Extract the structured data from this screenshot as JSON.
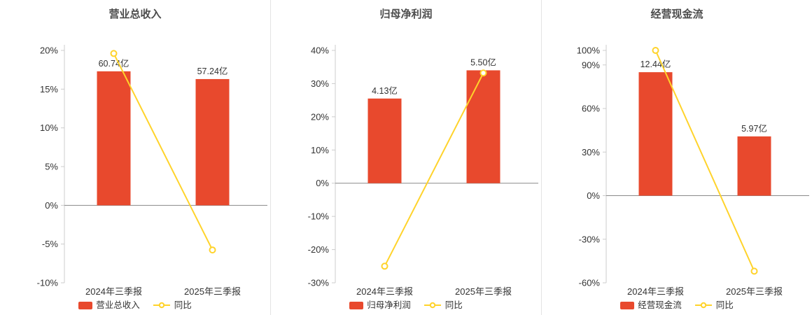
{
  "style": {
    "bar_color": "#e8492d",
    "line_color": "#ffd32b",
    "axis_color": "#cccccc",
    "zero_line_color": "#8a8a8a",
    "text_color": "#333333",
    "title_color": "#4c4c4c",
    "divider_color": "#e4e4e4",
    "background": "#ffffff"
  },
  "chart_data": [
    {
      "type": "bar+line",
      "title": "营业总收入",
      "categories": [
        "2024年三季报",
        "2025年三季报"
      ],
      "bar_series": {
        "name": "营业总收入",
        "unit": "亿",
        "values": [
          60.74,
          57.24
        ],
        "labels": [
          "60.74亿",
          "57.24亿"
        ],
        "display_pct": [
          17.3,
          16.3
        ]
      },
      "line_series": {
        "name": "同比",
        "values_pct": [
          19.6,
          -5.76
        ]
      },
      "ylim": [
        -10,
        20
      ],
      "yticks": [
        20,
        15,
        10,
        5,
        0,
        -5,
        -10
      ],
      "ytick_suffix": "%",
      "legend": [
        "营业总收入",
        "同比"
      ],
      "grid": false,
      "legend_position": "bottom"
    },
    {
      "type": "bar+line",
      "title": "归母净利润",
      "categories": [
        "2024年三季报",
        "2025年三季报"
      ],
      "bar_series": {
        "name": "归母净利润",
        "unit": "亿",
        "values": [
          4.13,
          5.5
        ],
        "labels": [
          "4.13亿",
          "5.50亿"
        ],
        "display_pct": [
          25.5,
          34.0
        ]
      },
      "line_series": {
        "name": "同比",
        "values_pct": [
          -25.0,
          33.2
        ]
      },
      "ylim": [
        -30,
        40
      ],
      "yticks": [
        40,
        30,
        20,
        10,
        0,
        -10,
        -20,
        -30
      ],
      "ytick_suffix": "%",
      "legend": [
        "归母净利润",
        "同比"
      ],
      "grid": false,
      "legend_position": "bottom"
    },
    {
      "type": "bar+line",
      "title": "经营现金流",
      "categories": [
        "2024年三季报",
        "2025年三季报"
      ],
      "bar_series": {
        "name": "经营现金流",
        "unit": "亿",
        "values": [
          12.44,
          5.97
        ],
        "labels": [
          "12.44亿",
          "5.97亿"
        ],
        "display_pct": [
          85.0,
          40.8
        ]
      },
      "line_series": {
        "name": "同比",
        "values_pct": [
          100.0,
          -52.0
        ]
      },
      "ylim": [
        -60,
        100
      ],
      "yticks": [
        100,
        90,
        60,
        30,
        0,
        -30,
        -60
      ],
      "ytick_suffix": "%",
      "legend": [
        "经营现金流",
        "同比"
      ],
      "grid": false,
      "legend_position": "bottom"
    }
  ]
}
